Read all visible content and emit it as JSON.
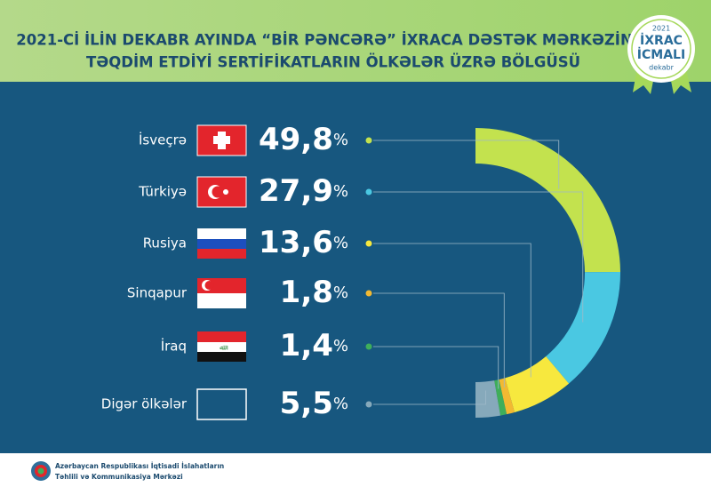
{
  "chart_data": {
    "type": "pie",
    "title": "2021-Cİ İLİN DEKABR AYINDA “BİR PƏNCƏRƏ” İXRACA DƏSTƏK MƏRKƏZİNİN",
    "subtitle": "TƏQDİM ETDİYİ SERTİFİKATLARIN ÖLKƏLƏR ÜZRƏ BÖLGÜSÜ",
    "categories": [
      "İsveçrə",
      "Türkiyə",
      "Rusiya",
      "Sinqapur",
      "İraq",
      "Digər ölkələr"
    ],
    "values": [
      49.8,
      27.9,
      13.6,
      1.8,
      1.4,
      5.5
    ],
    "value_labels": [
      "49,8",
      "27,9",
      "13,6",
      "1,8",
      "1,4",
      "5,5"
    ],
    "unit": "%",
    "colors": [
      "#c3e24e",
      "#4ac8e2",
      "#f7e83e",
      "#f2b932",
      "#3fae5a",
      "#86a9bb"
    ],
    "badge": {
      "year": "2021",
      "line1": "İXRAC",
      "line2": "İCMALI",
      "month": "dekabr"
    },
    "footer": {
      "line1": "Azərbaycan Respublikası İqtisadi İslahatların",
      "line2": "Təhlili və Kommunikasiya Mərkəzi"
    }
  }
}
